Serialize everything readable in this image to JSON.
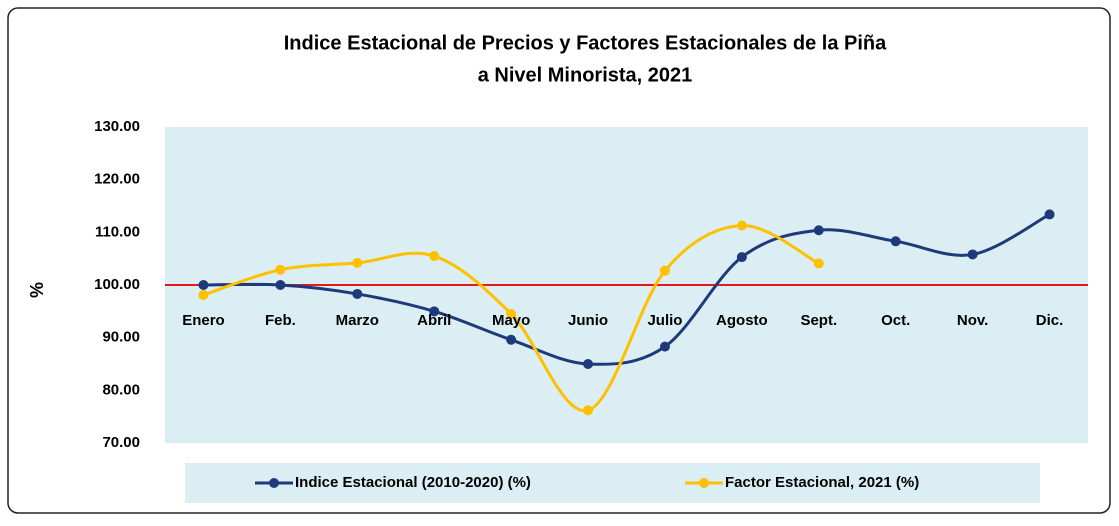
{
  "chart_data": {
    "type": "line",
    "title": "Indice Estacional de Precios y Factores Estacionales de la Piña",
    "subtitle": "a Nivel Minorista, 2021",
    "y_label": "%",
    "categories": [
      "Enero",
      "Feb.",
      "Marzo",
      "Abril",
      "Mayo",
      "Junio",
      "Julio",
      "Agosto",
      "Sept.",
      "Oct.",
      "Nov.",
      "Dic."
    ],
    "series": [
      {
        "name": "Indice Estacional (2010-2020) (%)",
        "color": "#1f3a7a",
        "values": [
          100,
          100,
          98.3,
          95,
          89.6,
          85,
          88.3,
          105.3,
          110.4,
          108.3,
          105.8,
          113.4
        ]
      },
      {
        "name": "Factor Estacional, 2021 (%)",
        "color": "#ffc000",
        "values": [
          98.1,
          102.9,
          104.2,
          105.5,
          94.5,
          76.2,
          102.7,
          111.3,
          104.1,
          null,
          null,
          null
        ]
      }
    ],
    "ylim": [
      70,
      130
    ],
    "yticks": [
      {
        "value": 70,
        "label": "70.00"
      },
      {
        "value": 80,
        "label": "80.00"
      },
      {
        "value": 90,
        "label": "90.00"
      },
      {
        "value": 100,
        "label": "100.00"
      },
      {
        "value": 110,
        "label": "110.00"
      },
      {
        "value": 120,
        "label": "120.00"
      },
      {
        "value": 130,
        "label": "130.00"
      }
    ],
    "reference_line": {
      "value": 100,
      "color": "#e31a1c"
    },
    "smooth": true,
    "grid": false
  }
}
